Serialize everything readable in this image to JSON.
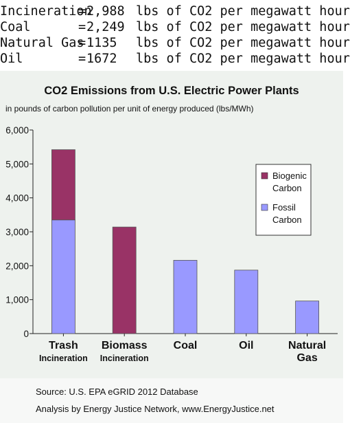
{
  "summary_rows": [
    {
      "label": "Incineration",
      "eq": "=",
      "value": "2,988",
      "unit": "lbs of CO2 per megawatt hour"
    },
    {
      "label": "Coal",
      "eq": "=",
      "value": "2,249",
      "unit": "lbs of CO2 per megawatt hour"
    },
    {
      "label": "Natural Gas",
      "eq": "=",
      "value": "1135 ",
      "unit": "lbs of CO2 per megawatt hour"
    },
    {
      "label": "Oil",
      "eq": "=",
      "value": "1672 ",
      "unit": "lbs of CO2 per megawatt hour"
    }
  ],
  "source": {
    "line1": "Source: U.S. EPA eGRID 2012 Database",
    "line2": "Analysis by Energy Justice Network, www.EnergyJustice.net"
  },
  "colors": {
    "biogenic": "#993366",
    "fossil": "#9999ff",
    "background": "#eef2ee"
  },
  "chart_data": {
    "type": "bar",
    "stacked": true,
    "title": "CO2 Emissions from U.S. Electric Power Plants",
    "subtitle": "in pounds of carbon pollution per unit of energy produced (lbs/MWh)",
    "categories": [
      [
        "Trash",
        "Incineration"
      ],
      [
        "Biomass",
        "Incineration"
      ],
      [
        "Coal"
      ],
      [
        "Oil"
      ],
      [
        "Natural",
        "Gas"
      ]
    ],
    "series": [
      {
        "name": "Fossil Carbon",
        "color": "#9999ff",
        "values": [
          3350,
          0,
          2160,
          1870,
          960
        ]
      },
      {
        "name": "Biogenic Carbon",
        "color": "#993366",
        "values": [
          2070,
          3140,
          0,
          0,
          0
        ]
      }
    ],
    "ylim": [
      0,
      6000
    ],
    "yticks": [
      0,
      1000,
      2000,
      3000,
      4000,
      5000,
      6000
    ],
    "ytick_labels": [
      "0",
      "1,000",
      "2,000",
      "3,000",
      "4,000",
      "5,000",
      "6,000"
    ],
    "grid": false,
    "legend": {
      "placement": "right",
      "entries": [
        [
          "Biogenic",
          "Carbon"
        ],
        [
          "Fossil",
          "Carbon"
        ]
      ]
    }
  }
}
